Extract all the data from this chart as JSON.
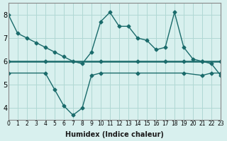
{
  "xlabel": "Humidex (Indice chaleur)",
  "bg_color": "#d8f0ee",
  "line_color": "#1a6b6b",
  "grid_color": "#b0d8d4",
  "xlim": [
    0,
    23
  ],
  "ylim": [
    3.5,
    8.5
  ],
  "yticks": [
    4,
    5,
    6,
    7,
    8
  ],
  "xticks": [
    0,
    1,
    2,
    3,
    4,
    5,
    6,
    7,
    8,
    9,
    10,
    11,
    12,
    13,
    14,
    15,
    16,
    17,
    18,
    19,
    20,
    21,
    22,
    23
  ],
  "line1_x": [
    0,
    1,
    2,
    3,
    4,
    5,
    6,
    7,
    8,
    9,
    10,
    11,
    12,
    13,
    14,
    15,
    16,
    17,
    18,
    19,
    20,
    21,
    22,
    23
  ],
  "line1_y": [
    8.0,
    7.2,
    7.0,
    6.8,
    6.6,
    6.4,
    6.2,
    6.0,
    5.9,
    6.4,
    7.7,
    8.1,
    7.5,
    7.5,
    7.0,
    6.9,
    6.5,
    6.6,
    8.1,
    6.6,
    6.1,
    6.0,
    5.9,
    5.4
  ],
  "line2_x": [
    0,
    4,
    10,
    14,
    17,
    19,
    21,
    23
  ],
  "line2_y": [
    6.0,
    6.0,
    6.0,
    6.0,
    6.0,
    6.0,
    6.0,
    6.0
  ],
  "line3_x": [
    0,
    4,
    5,
    6,
    7,
    8,
    9,
    10,
    14,
    19,
    21,
    22,
    23
  ],
  "line3_y": [
    5.5,
    5.5,
    4.8,
    4.1,
    3.7,
    4.0,
    5.4,
    5.5,
    5.5,
    5.5,
    5.4,
    5.5,
    5.5
  ]
}
